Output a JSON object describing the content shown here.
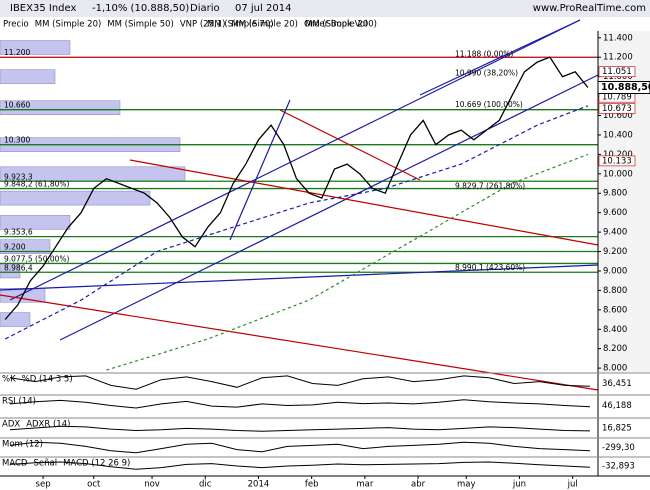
{
  "header": {
    "title": "IBEX35 Index",
    "change": "-1,10% (10.888,50)",
    "period": "Diario",
    "date": "07 jul 2014",
    "site": "www.ProRealTime.com"
  },
  "chart_data": {
    "type": "line",
    "xlim": [
      -2,
      234
    ],
    "xticks": [
      {
        "value": 15,
        "label": "sep"
      },
      {
        "value": 35,
        "label": "oct"
      },
      {
        "value": 58,
        "label": "nov"
      },
      {
        "value": 79,
        "label": "dic"
      },
      {
        "value": 100,
        "label": "2014"
      },
      {
        "value": 121,
        "label": "feb"
      },
      {
        "value": 142,
        "label": "mar"
      },
      {
        "value": 163,
        "label": "abr"
      },
      {
        "value": 182,
        "label": "may"
      },
      {
        "value": 203,
        "label": "jun"
      },
      {
        "value": 224,
        "label": "jul"
      }
    ],
    "ylim": [
      7960,
      11470
    ],
    "yticks": [
      {
        "value": 8000,
        "label": "8.000"
      },
      {
        "value": 8200,
        "label": "8.200"
      },
      {
        "value": 8400,
        "label": "8.400"
      },
      {
        "value": 8600,
        "label": "8.600"
      },
      {
        "value": 8800,
        "label": "8.800"
      },
      {
        "value": 9000,
        "label": "9.000"
      },
      {
        "value": 9200,
        "label": "9.200"
      },
      {
        "value": 9400,
        "label": "9.400"
      },
      {
        "value": 9600,
        "label": "9.600"
      },
      {
        "value": 9800,
        "label": "9.800"
      },
      {
        "value": 10000,
        "label": "10.000"
      },
      {
        "value": 10200,
        "label": "10.200"
      },
      {
        "value": 10400,
        "label": "10.400"
      },
      {
        "value": 10600,
        "label": "10.600"
      },
      {
        "value": 10800,
        "label": "10.800"
      },
      {
        "value": 11000,
        "label": "11.000"
      },
      {
        "value": 11200,
        "label": "11.200"
      },
      {
        "value": 11400,
        "label": "11.400"
      }
    ],
    "series": [
      {
        "name": "Precio",
        "color": "#000000",
        "x": [
          0,
          5,
          10,
          15,
          20,
          25,
          30,
          35,
          40,
          45,
          50,
          55,
          60,
          65,
          70,
          75,
          80,
          85,
          90,
          95,
          100,
          105,
          110,
          115,
          120,
          125,
          130,
          135,
          140,
          145,
          150,
          155,
          160,
          165,
          170,
          175,
          180,
          185,
          190,
          195,
          200,
          205,
          210,
          215,
          220,
          225,
          230
        ],
        "values": [
          8500,
          8650,
          8900,
          9050,
          9250,
          9450,
          9600,
          9850,
          9950,
          9900,
          9850,
          9800,
          9700,
          9550,
          9350,
          9250,
          9450,
          9600,
          9900,
          10100,
          10350,
          10500,
          10300,
          9950,
          9800,
          9750,
          10050,
          10100,
          10000,
          9850,
          9800,
          10100,
          10400,
          10550,
          10300,
          10400,
          10450,
          10350,
          10450,
          10550,
          10800,
          11050,
          11150,
          11200,
          11000,
          11050,
          10888.5
        ]
      },
      {
        "name": "MM (Simple 70)",
        "color": "#1a1aa6",
        "x": [
          0,
          30,
          60,
          90,
          120,
          150,
          180,
          210,
          230
        ],
        "values": [
          8300,
          8700,
          9200,
          9450,
          9700,
          9850,
          10100,
          10500,
          10700
        ]
      },
      {
        "name": "MM (Simple 200)",
        "color": "#2a8a2a",
        "x": [
          40,
          80,
          120,
          160,
          200,
          230
        ],
        "values": [
          7980,
          8300,
          8700,
          9300,
          9900,
          10200
        ]
      }
    ],
    "legend_extra": [
      {
        "name": "MM (Simple 20)",
        "color": "#c00000"
      },
      {
        "name": "MM (Simple 50)",
        "color": "#808080"
      },
      {
        "name": "VNP (25,1)",
        "color": "#a0a0ff"
      },
      {
        "name": "MM (Simple 20)",
        "color": "#c00000"
      },
      {
        "name": "Order Book Vol",
        "color": "#c00000"
      }
    ],
    "legend_first": "Precio",
    "levels": [
      {
        "value": 11200,
        "label": "11.200"
      },
      {
        "value": 10660,
        "label": "10.660"
      },
      {
        "value": 10300,
        "label": "10.300"
      },
      {
        "value": 9923.3,
        "label": "9.923,3"
      },
      {
        "value": 9848.2,
        "label": "9.848,2 (61,80%)"
      },
      {
        "value": 9353.6,
        "label": "9.353,6"
      },
      {
        "value": 9200,
        "label": "9.200"
      },
      {
        "value": 9077.5,
        "label": "9.077,5 (50,00%)"
      },
      {
        "value": 8986.4,
        "label": "8.986,4"
      }
    ],
    "annotations": [
      {
        "text": "11.188 (0,00%)",
        "price": 11188
      },
      {
        "text": "10.990 (38,20%)",
        "price": 10990
      },
      {
        "text": "10.669 (100,00%)",
        "price": 10669
      },
      {
        "text": "9.829,7 (261,80%)",
        "price": 9829.7
      },
      {
        "text": "8.990,1 (423,60%)",
        "price": 8990.1
      }
    ],
    "right_labels": [
      {
        "value": 11051,
        "label": "11.051"
      },
      {
        "value": 10789,
        "label": "10.789"
      },
      {
        "value": 10673,
        "label": "10.673"
      },
      {
        "value": 10133,
        "label": "10.133"
      }
    ],
    "last_price": {
      "value": 10888.5,
      "label": "10.888,50"
    },
    "volume_profile": {
      "prices": [
        11300,
        11000,
        10680,
        10300,
        10000,
        9750,
        9500,
        9250,
        9000,
        8750,
        8500
      ],
      "values": [
        70,
        55,
        120,
        180,
        185,
        150,
        70,
        50,
        20,
        45,
        30
      ]
    }
  },
  "indicators": [
    {
      "label": "%K",
      "label2": "%D (14 3 5)",
      "last": "36,451",
      "ylim": [
        0,
        100
      ],
      "values": [
        80,
        60,
        85,
        90,
        40,
        20,
        70,
        85,
        60,
        30,
        80,
        90,
        50,
        40,
        75,
        85,
        60,
        70,
        90,
        80,
        50,
        60,
        40,
        36
      ]
    },
    {
      "label": "RSI (14)",
      "last": "46,188",
      "ylim": [
        20,
        80
      ],
      "values": [
        55,
        62,
        66,
        60,
        50,
        42,
        55,
        63,
        48,
        45,
        55,
        50,
        52,
        60,
        56,
        58,
        55,
        60,
        68,
        62,
        58,
        55,
        50,
        46
      ]
    },
    {
      "label": "ADX",
      "label2": "ADXR (14)",
      "last": "16,825",
      "ylim": [
        0,
        50
      ],
      "values": [
        20,
        25,
        30,
        28,
        22,
        18,
        20,
        24,
        22,
        18,
        16,
        18,
        20,
        22,
        24,
        26,
        22,
        20,
        24,
        28,
        26,
        22,
        18,
        17
      ]
    },
    {
      "label": "Mom (12)",
      "last": "-299,30",
      "ylim": [
        -800,
        800
      ],
      "values": [
        200,
        500,
        400,
        100,
        -300,
        -500,
        -100,
        300,
        400,
        -200,
        -400,
        100,
        200,
        300,
        -100,
        100,
        200,
        300,
        500,
        400,
        100,
        -100,
        -200,
        -299
      ]
    },
    {
      "label": "MACD",
      "label2": "Señal",
      "label3": "MACD (12 26 9)",
      "last": "-32,893",
      "ylim": [
        -200,
        200
      ],
      "values": [
        40,
        80,
        100,
        60,
        -20,
        -80,
        -40,
        40,
        60,
        0,
        -40,
        0,
        20,
        50,
        30,
        40,
        50,
        60,
        90,
        100,
        70,
        30,
        0,
        -33
      ]
    }
  ]
}
